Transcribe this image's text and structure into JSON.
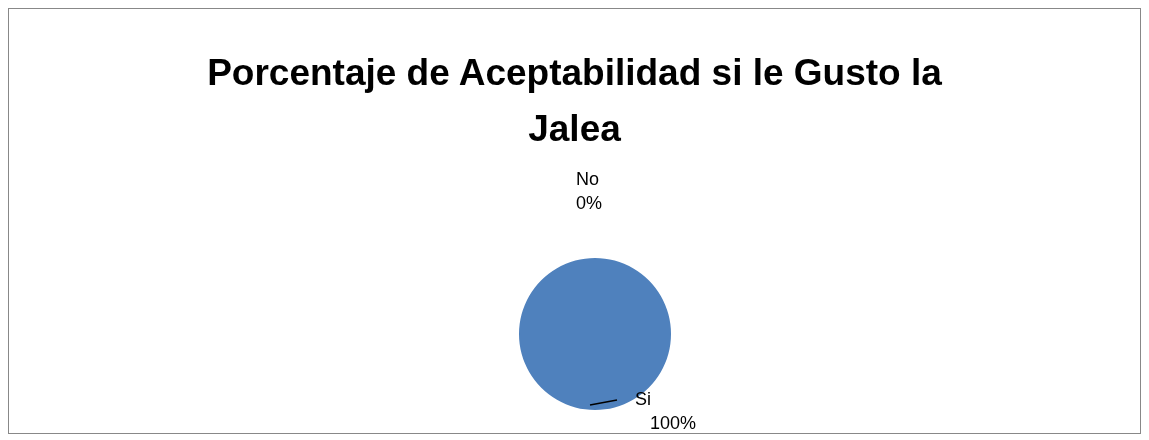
{
  "chart_data": {
    "type": "pie",
    "title": "Porcentaje de Aceptabilidad si le Gusto la Jalea",
    "categories": [
      "Si",
      "No"
    ],
    "values": [
      100,
      0
    ],
    "colors": [
      "#4f81bd",
      "#c0504d"
    ],
    "value_labels": [
      "100%",
      "0%"
    ]
  }
}
